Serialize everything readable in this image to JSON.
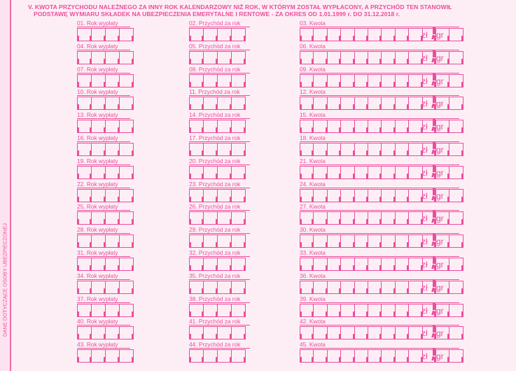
{
  "section": {
    "title_line1": "V. KWOTA PRZYCHODU NALEŻNEGO ZA INNY ROK KALENDARZOWY NIŻ ROK, W KTÓRYM ZOSTAŁ WYPŁACONY, A PRZYCHÓD TEN STANOWIŁ",
    "title_line2": "PODSTAWĘ WYMIARU SKŁADEK NA UBEZPIECZENIA EMERYTALNE I RENTOWE - ZA OKRES OD 1.01.1999 r. DO 31.12.2018 r."
  },
  "side_label": "DANE DOTYCZĄCE OSOBY UBEZPIECZONEJ",
  "currency": {
    "zl": "zł",
    "gr": "gr"
  },
  "rows": [
    {
      "f1": "01. Rok wypłaty",
      "f2": "02. Przychód za rok",
      "f3": "03. Kwota"
    },
    {
      "f1": "04. Rok wypłaty",
      "f2": "05. Przychód za rok",
      "f3": "06. Kwota"
    },
    {
      "f1": "07. Rok wypłaty",
      "f2": "08. Przychód za rok",
      "f3": "09. Kwota"
    },
    {
      "f1": "10. Rok wypłaty",
      "f2": "11. Przychód za rok",
      "f3": "12. Kwota"
    },
    {
      "f1": "13. Rok wypłaty",
      "f2": "14. Przychód za rok",
      "f3": "15. Kwota"
    },
    {
      "f1": "16. Rok wypłaty",
      "f2": "17. Przychód za rok",
      "f3": "18. Kwota"
    },
    {
      "f1": "19. Rok wypłaty",
      "f2": "20. Przychód za rok",
      "f3": "21. Kwota"
    },
    {
      "f1": "22. Rok wypłaty",
      "f2": "23. Przychód za rok",
      "f3": "24. Kwota"
    },
    {
      "f1": "25. Rok wypłaty",
      "f2": "26. Przychód za rok",
      "f3": "27. Kwota"
    },
    {
      "f1": "28. Rok wypłaty",
      "f2": "29. Przychód za rok",
      "f3": "30. Kwota"
    },
    {
      "f1": "31. Rok wypłaty",
      "f2": "32. Przychód za rok",
      "f3": "33. Kwota"
    },
    {
      "f1": "34. Rok wypłaty",
      "f2": "35. Przychód za rok",
      "f3": "36. Kwota"
    },
    {
      "f1": "37. Rok wypłaty",
      "f2": "38. Przychód za rok",
      "f3": "39. Kwota"
    },
    {
      "f1": "40. Rok wypłaty",
      "f2": "41. Przychód za rok",
      "f3": "42. Kwota"
    },
    {
      "f1": "43. Rok wypłaty",
      "f2": "44. Przychód za rok",
      "f3": "45. Kwota"
    }
  ]
}
